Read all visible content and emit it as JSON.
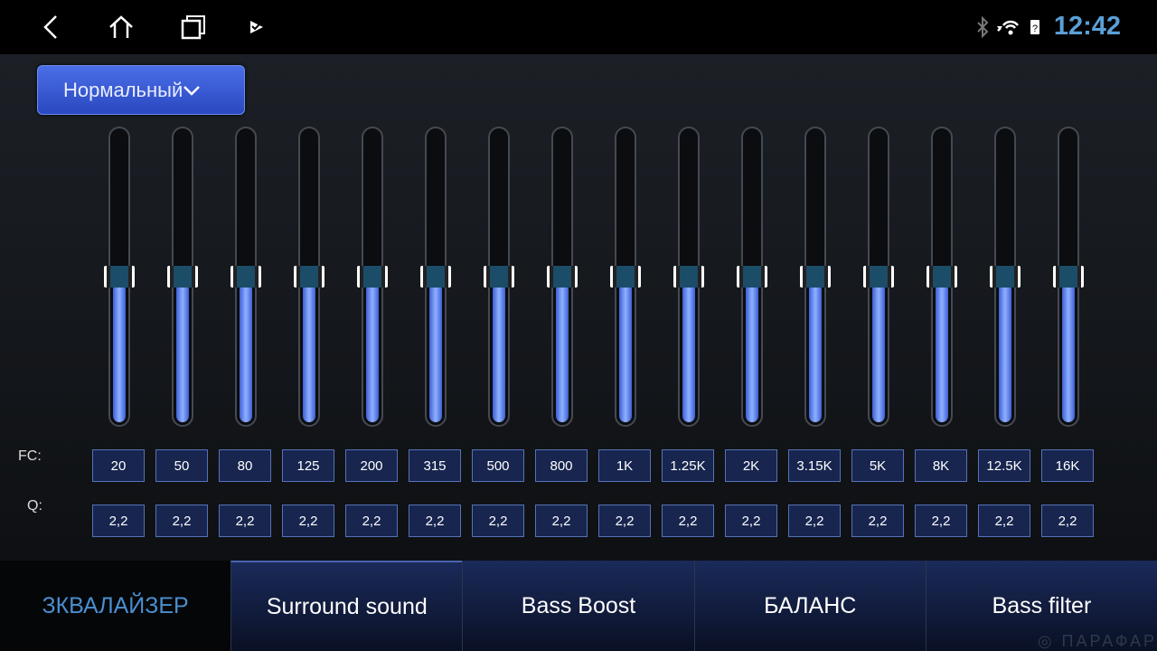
{
  "statusbar": {
    "time": "12:42",
    "icons": [
      "back-icon",
      "home-icon",
      "recents-icon",
      "cast-icon",
      "bluetooth-icon",
      "wifi-icon",
      "sim-icon"
    ]
  },
  "preset": {
    "label": "Нормальный"
  },
  "labels": {
    "fc": "FC:",
    "q": "Q:"
  },
  "bands": [
    {
      "fc": "20",
      "q": "2,2",
      "level": 0.5
    },
    {
      "fc": "50",
      "q": "2,2",
      "level": 0.5
    },
    {
      "fc": "80",
      "q": "2,2",
      "level": 0.5
    },
    {
      "fc": "125",
      "q": "2,2",
      "level": 0.5
    },
    {
      "fc": "200",
      "q": "2,2",
      "level": 0.5
    },
    {
      "fc": "315",
      "q": "2,2",
      "level": 0.5
    },
    {
      "fc": "500",
      "q": "2,2",
      "level": 0.5
    },
    {
      "fc": "800",
      "q": "2,2",
      "level": 0.5
    },
    {
      "fc": "1K",
      "q": "2,2",
      "level": 0.5
    },
    {
      "fc": "1.25K",
      "q": "2,2",
      "level": 0.5
    },
    {
      "fc": "2K",
      "q": "2,2",
      "level": 0.5
    },
    {
      "fc": "3.15K",
      "q": "2,2",
      "level": 0.5
    },
    {
      "fc": "5K",
      "q": "2,2",
      "level": 0.5
    },
    {
      "fc": "8K",
      "q": "2,2",
      "level": 0.5
    },
    {
      "fc": "12.5K",
      "q": "2,2",
      "level": 0.5
    },
    {
      "fc": "16K",
      "q": "2,2",
      "level": 0.5
    }
  ],
  "tabs": [
    {
      "label": "ЗКВАЛАЙЗЕР",
      "active": true
    },
    {
      "label": "Surround sound"
    },
    {
      "label": "Bass Boost"
    },
    {
      "label": "БАЛАНС"
    },
    {
      "label": "Bass filter"
    }
  ],
  "colors": {
    "accent": "#4a8ed0",
    "fill": "#6f95f5",
    "clock": "#5aa0d8"
  },
  "watermark": "ПАРАФАР"
}
